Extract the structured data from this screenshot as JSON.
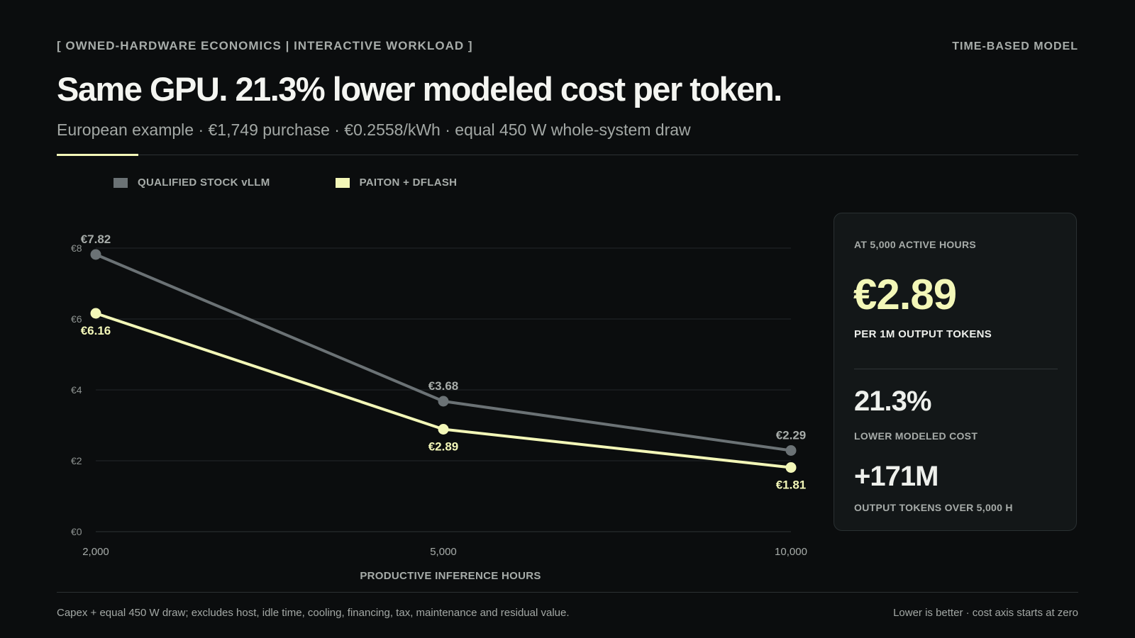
{
  "header": {
    "eyebrow": "[ OWNED-HARDWARE ECONOMICS | INTERACTIVE WORKLOAD ]",
    "corner": "TIME-BASED MODEL",
    "title": "Same GPU. 21.3% lower modeled cost per token.",
    "subtitle": "European example · €1,749 purchase · €0.2558/kWh · equal 450 W whole-system draw"
  },
  "colors": {
    "background": "#0b0d0e",
    "stock": "#6b7275",
    "paiton": "#f3f7b8",
    "grid": "#23282a",
    "muted": "#a7aca9"
  },
  "chart_data": {
    "type": "line",
    "x": [
      2000,
      5000,
      10000
    ],
    "x_tick_labels": [
      "2,000",
      "5,000",
      "10,000"
    ],
    "xlabel": "PRODUCTIVE INFERENCE HOURS",
    "ylim": [
      0,
      8
    ],
    "y_ticks": [
      0,
      2,
      4,
      6,
      8
    ],
    "y_tick_labels": [
      "€0",
      "€2",
      "€4",
      "€6",
      "€8"
    ],
    "grid": true,
    "legend_position": "top-left",
    "series": [
      {
        "name": "QUALIFIED STOCK vLLM",
        "color": "#6b7275",
        "values": [
          7.82,
          3.68,
          2.29
        ],
        "labels": [
          "€7.82",
          "€3.68",
          "€2.29"
        ]
      },
      {
        "name": "PAITON + DFLASH",
        "color": "#f3f7b8",
        "values": [
          6.16,
          2.89,
          1.81
        ],
        "labels": [
          "€6.16",
          "€2.89",
          "€1.81"
        ]
      }
    ]
  },
  "card": {
    "kicker": "AT 5,000 ACTIVE HOURS",
    "big_value": "€2.89",
    "big_label": "PER 1M OUTPUT TOKENS",
    "stat1_value": "21.3%",
    "stat1_label": "LOWER MODELED COST",
    "stat2_value": "+171M",
    "stat2_label": "OUTPUT TOKENS OVER 5,000 H"
  },
  "footer": {
    "left": "Capex + equal 450 W draw; excludes host, idle time, cooling, financing, tax, maintenance and residual value.",
    "right": "Lower is better · cost axis starts at zero"
  }
}
